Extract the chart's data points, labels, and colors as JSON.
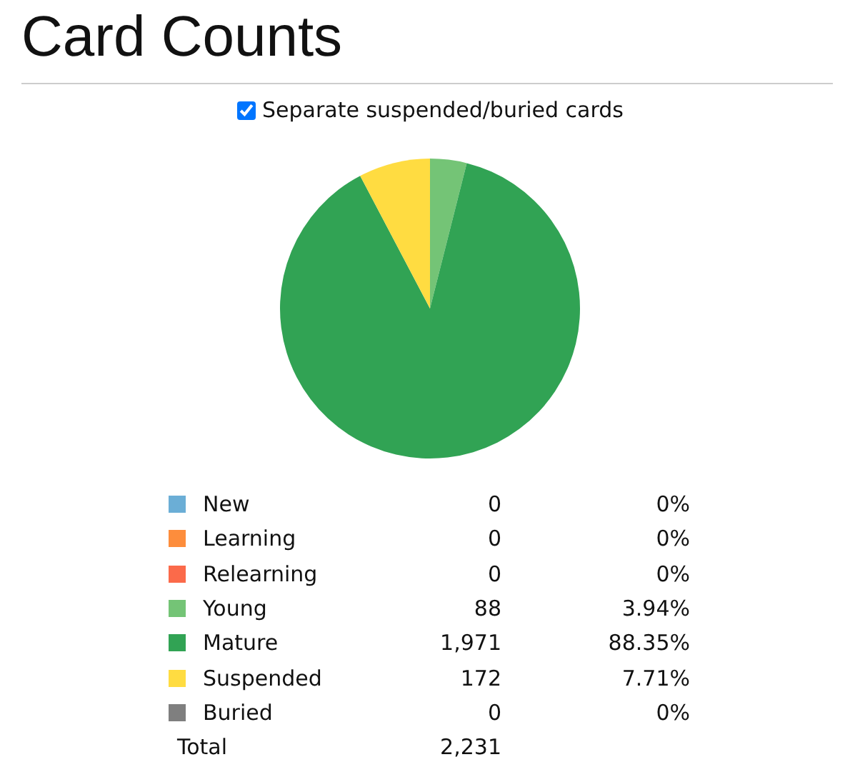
{
  "chart_data": {
    "type": "pie",
    "title": "Card Counts",
    "subtitle": "Separate suspended/buried cards",
    "categories": [
      "New",
      "Learning",
      "Relearning",
      "Young",
      "Mature",
      "Suspended",
      "Buried"
    ],
    "values": [
      0,
      0,
      0,
      88,
      1971,
      172,
      0
    ],
    "value_labels": [
      "0",
      "0",
      "0",
      "88",
      "1,971",
      "172",
      "0"
    ],
    "colors": [
      "#6baed6",
      "#fd8d3c",
      "#fb6a4a",
      "#74c476",
      "#31a354",
      "#ffdc41",
      "#7f7f7f"
    ],
    "annotations": [
      "0%",
      "0%",
      "0%",
      "3.94%",
      "88.35%",
      "7.71%",
      "0%",
      "Total"
    ],
    "totals": [
      "2,231"
    ],
    "legend": "bottom"
  }
}
